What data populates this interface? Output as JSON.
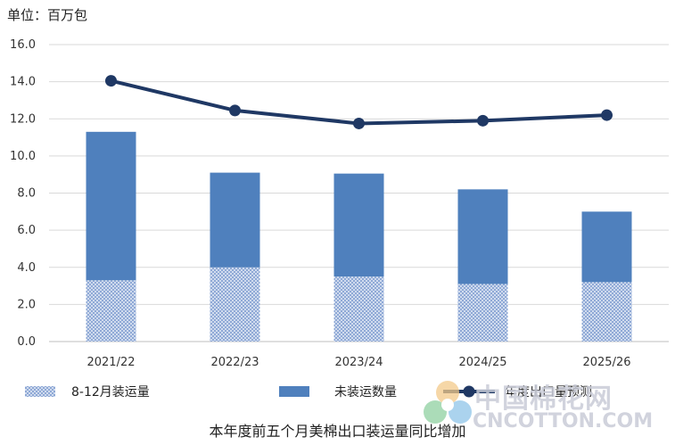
{
  "unit_label": "单位：百万包",
  "caption": "本年度前五个月美棉出口装运量同比增加",
  "watermark": {
    "cn": "中国棉花网",
    "en": "CNCOTTON.COM"
  },
  "colors": {
    "shipped": "#8fa9d6",
    "shipped_dots": "#ffffff",
    "unshipped": "#4f80bd",
    "line": "#1f3864",
    "grid": "#d9d9d9"
  },
  "chart_data": {
    "type": "bar",
    "stacked": true,
    "categories": [
      "2021/22",
      "2022/23",
      "2023/24",
      "2024/25",
      "2025/26"
    ],
    "series": [
      {
        "name": "8-12月装运量",
        "type": "bar",
        "pattern": "dotted",
        "values": [
          3.3,
          4.0,
          3.5,
          3.1,
          3.2
        ]
      },
      {
        "name": "未装运数量",
        "type": "bar",
        "values": [
          8.0,
          5.1,
          5.55,
          5.1,
          3.8
        ]
      },
      {
        "name": "年度出口量预测",
        "type": "line",
        "values": [
          14.05,
          12.45,
          11.75,
          11.9,
          12.2
        ]
      }
    ],
    "ylim": [
      0,
      16
    ],
    "yticks": [
      "0.0",
      "2.0",
      "4.0",
      "6.0",
      "8.0",
      "10.0",
      "12.0",
      "14.0",
      "16.0"
    ],
    "grid": true,
    "legend_position": "bottom"
  }
}
